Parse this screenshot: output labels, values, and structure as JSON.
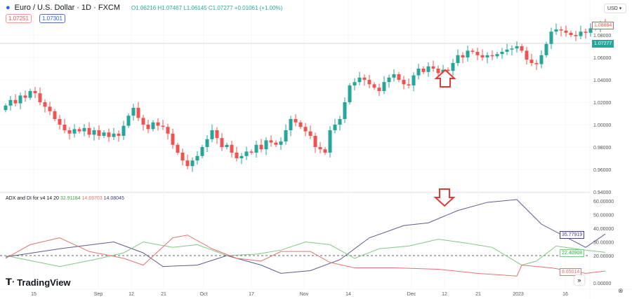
{
  "header": {
    "symbol": "Euro / U.S. Dollar · 1D · FXCM",
    "ohlc": "O1.06216 H1.07467 L1.06145 C1.07277 +0.01061 (+1.00%)",
    "sell": "1.07251",
    "buy": "1.07301",
    "currency": "USD"
  },
  "indicator": {
    "name": "ADX and DI for v4 14 20",
    "plus_di": "32.91184",
    "minus_di": "14.69703",
    "adx": "14.08045"
  },
  "labels": {
    "last_price": "1.08884",
    "crosshair_price": "1.07277",
    "adx_last": "35.77919",
    "plus_last": "22.40908",
    "minus_last": "8.65014"
  },
  "brand": "TradingView",
  "colors": {
    "up": "#26a69a",
    "down": "#ef5350",
    "adx": "#5b5b8f",
    "plus_di": "#81c784",
    "minus_di": "#e57373"
  },
  "chart_data": {
    "type": "candlestick",
    "price_axis": [
      "1.08000",
      "1.06000",
      "1.04000",
      "1.02000",
      "1.00000",
      "0.98000",
      "0.96000",
      "0.94000"
    ],
    "price_range": [
      0.94,
      1.09
    ],
    "x_ticks": [
      "15",
      "Sep",
      "12",
      "21",
      "Oct",
      "17",
      "Nov",
      "14",
      "Dec",
      "12",
      "21",
      "2023",
      "16"
    ],
    "closes": [
      1.017,
      1.022,
      1.019,
      1.026,
      1.024,
      1.03,
      1.028,
      1.02,
      1.016,
      1.012,
      1.005,
      1.0,
      0.995,
      0.992,
      0.996,
      0.994,
      0.997,
      0.991,
      0.995,
      0.99,
      0.993,
      0.989,
      0.992,
      0.99,
      0.999,
      1.008,
      1.015,
      1.006,
      1.0,
      0.996,
      1.002,
      0.999,
      0.998,
      0.992,
      0.982,
      0.975,
      0.968,
      0.963,
      0.968,
      0.972,
      0.98,
      0.987,
      0.995,
      0.988,
      0.98,
      0.982,
      0.975,
      0.97,
      0.972,
      0.976,
      0.975,
      0.982,
      0.978,
      0.986,
      0.984,
      0.982,
      0.985,
      0.995,
      1.005,
      1.002,
      0.998,
      0.994,
      0.99,
      0.98,
      0.978,
      0.975,
      0.995,
      1.0,
      1.005,
      1.02,
      1.035,
      1.038,
      1.042,
      1.04,
      1.036,
      1.033,
      1.03,
      1.038,
      1.042,
      1.045,
      1.04,
      1.036,
      1.035,
      1.044,
      1.05,
      1.047,
      1.052,
      1.05,
      1.046,
      1.049,
      1.048,
      1.055,
      1.062,
      1.06,
      1.066,
      1.065,
      1.062,
      1.06,
      1.062,
      1.061,
      1.063,
      1.065,
      1.067,
      1.068,
      1.07,
      1.066,
      1.058,
      1.055,
      1.054,
      1.062,
      1.072,
      1.083,
      1.085,
      1.084,
      1.082,
      1.08,
      1.079,
      1.083,
      1.082,
      1.086,
      1.087,
      1.089,
      1.088
    ],
    "indicator_axis": [
      "60.00000",
      "50.00000",
      "40.00000",
      "30.00000",
      "20.00000",
      "0.00000"
    ],
    "indicator_range": [
      0,
      60
    ],
    "threshold": 20,
    "adx": [
      [
        0,
        19
      ],
      [
        11,
        25
      ],
      [
        22,
        30
      ],
      [
        28,
        22
      ],
      [
        32,
        12
      ],
      [
        39,
        13
      ],
      [
        45,
        20
      ],
      [
        52,
        13
      ],
      [
        56,
        7
      ],
      [
        62,
        9
      ],
      [
        68,
        17
      ],
      [
        74,
        33
      ],
      [
        81,
        42
      ],
      [
        86,
        44
      ],
      [
        92,
        53
      ],
      [
        98,
        59
      ],
      [
        104,
        61
      ],
      [
        109,
        43
      ],
      [
        118,
        26
      ],
      [
        122,
        35.8
      ]
    ],
    "plus_di": [
      [
        0,
        20
      ],
      [
        11,
        12
      ],
      [
        18,
        17
      ],
      [
        24,
        22
      ],
      [
        28,
        30
      ],
      [
        34,
        26
      ],
      [
        39,
        28
      ],
      [
        45,
        20
      ],
      [
        51,
        21
      ],
      [
        56,
        24
      ],
      [
        61,
        30
      ],
      [
        66,
        28
      ],
      [
        71,
        18
      ],
      [
        76,
        25
      ],
      [
        82,
        27
      ],
      [
        88,
        32
      ],
      [
        94,
        29
      ],
      [
        99,
        26
      ],
      [
        105,
        13
      ],
      [
        108,
        16
      ],
      [
        112,
        27
      ],
      [
        118,
        24
      ],
      [
        122,
        22.4
      ]
    ],
    "minus_di": [
      [
        0,
        18
      ],
      [
        5,
        28
      ],
      [
        11,
        33
      ],
      [
        17,
        23
      ],
      [
        24,
        18
      ],
      [
        28,
        13
      ],
      [
        34,
        33
      ],
      [
        37,
        35
      ],
      [
        42,
        25
      ],
      [
        47,
        18
      ],
      [
        52,
        16
      ],
      [
        56,
        23
      ],
      [
        62,
        23
      ],
      [
        66,
        15
      ],
      [
        71,
        11
      ],
      [
        79,
        11
      ],
      [
        88,
        10
      ],
      [
        96,
        7
      ],
      [
        104,
        5
      ],
      [
        105,
        13
      ],
      [
        111,
        11
      ],
      [
        118,
        7
      ],
      [
        122,
        8.7
      ]
    ]
  }
}
